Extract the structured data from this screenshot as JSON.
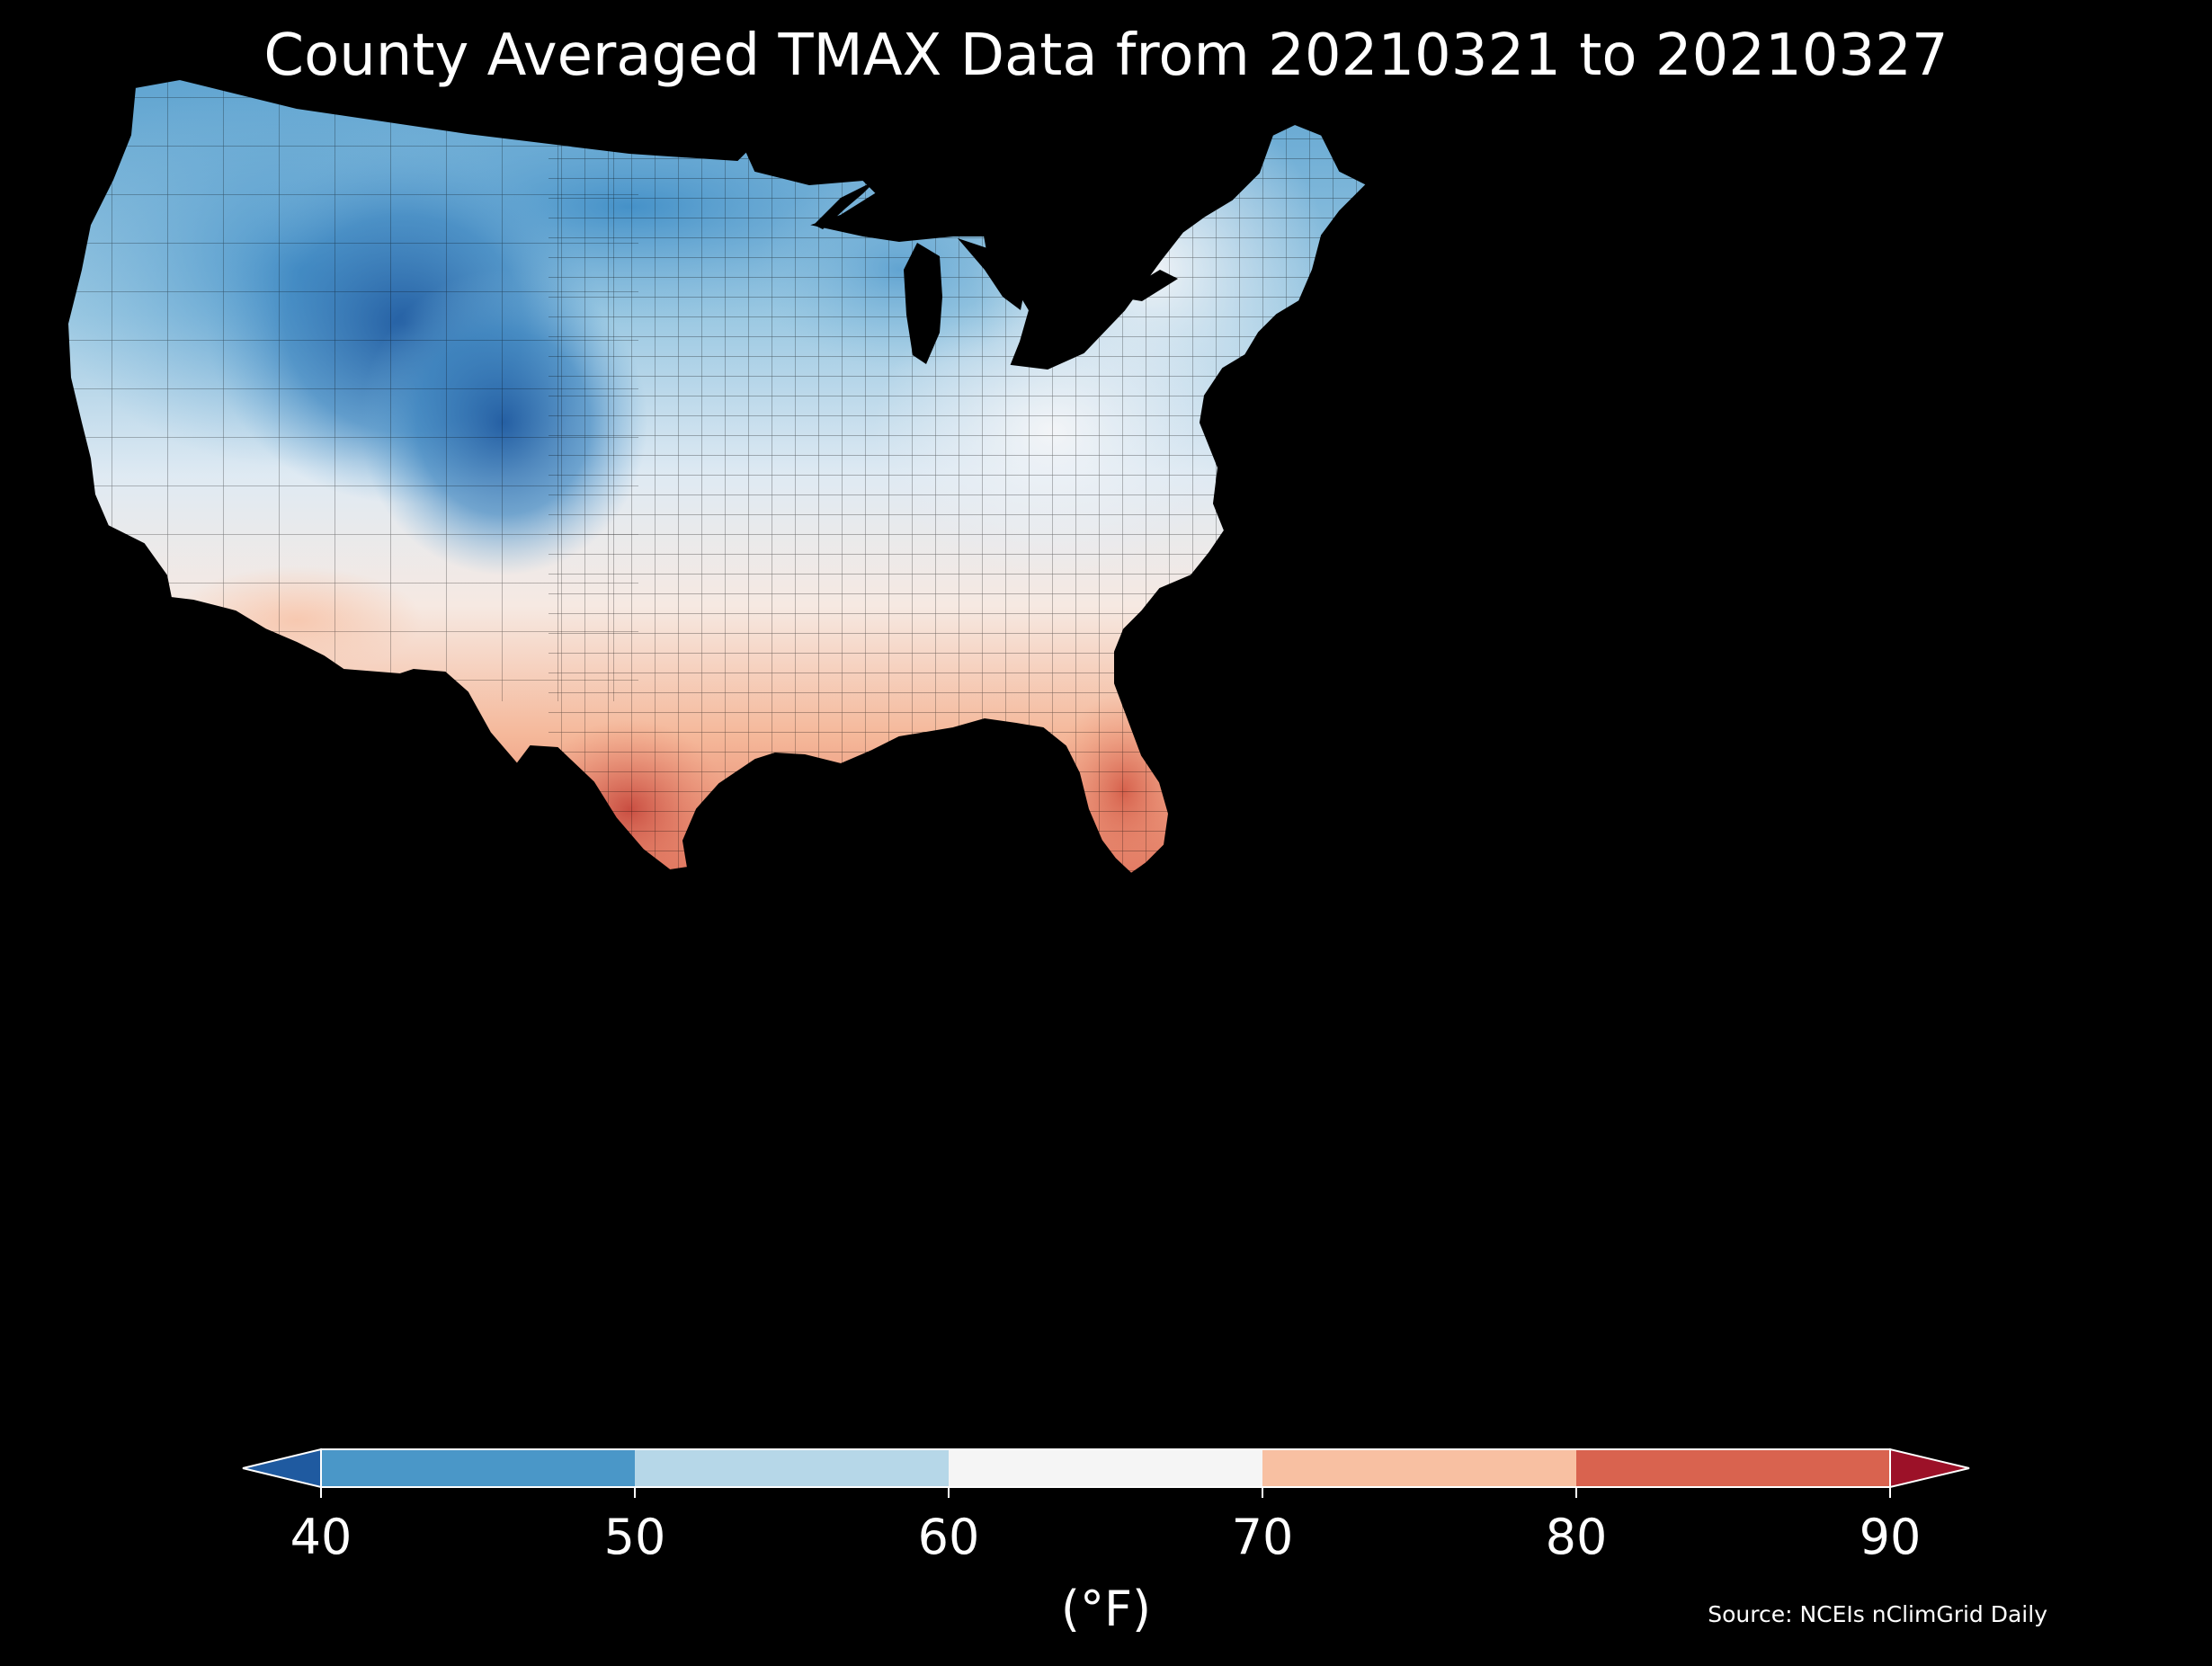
{
  "title": "County Averaged TMAX Data from 20210321 to 20210327",
  "source": "Source: NCEIs nClimGrid Daily",
  "map": {
    "region": "contiguous-united-states-counties",
    "variable": "TMAX",
    "background_color": "#000000",
    "boundary_color": "#000000"
  },
  "colorbar": {
    "unit_label": "(°F)",
    "ticks": [
      "40",
      "50",
      "60",
      "70",
      "80",
      "90"
    ],
    "tick_values": [
      40,
      50,
      60,
      70,
      80,
      90
    ],
    "extend": "both",
    "below_color": "#1f5aa0",
    "above_color": "#9c1128",
    "bins": [
      {
        "min": 40,
        "max": 50,
        "color": "#4a97c8"
      },
      {
        "min": 50,
        "max": 60,
        "color": "#b6d7e8"
      },
      {
        "min": 60,
        "max": 70,
        "color": "#f5f5f5"
      },
      {
        "min": 70,
        "max": 80,
        "color": "#f8c0a2"
      },
      {
        "min": 80,
        "max": 90,
        "color": "#d9634f"
      }
    ]
  },
  "regional_pattern": {
    "northern_rockies": "#1f5aa0",
    "great_basin_plains": "#4a97c8",
    "upper_midwest": "#b6d7e8",
    "northeast_central": "#f0f3f7",
    "southeast": "#f8c0a2",
    "south_texas_florida": "#d9634f"
  }
}
